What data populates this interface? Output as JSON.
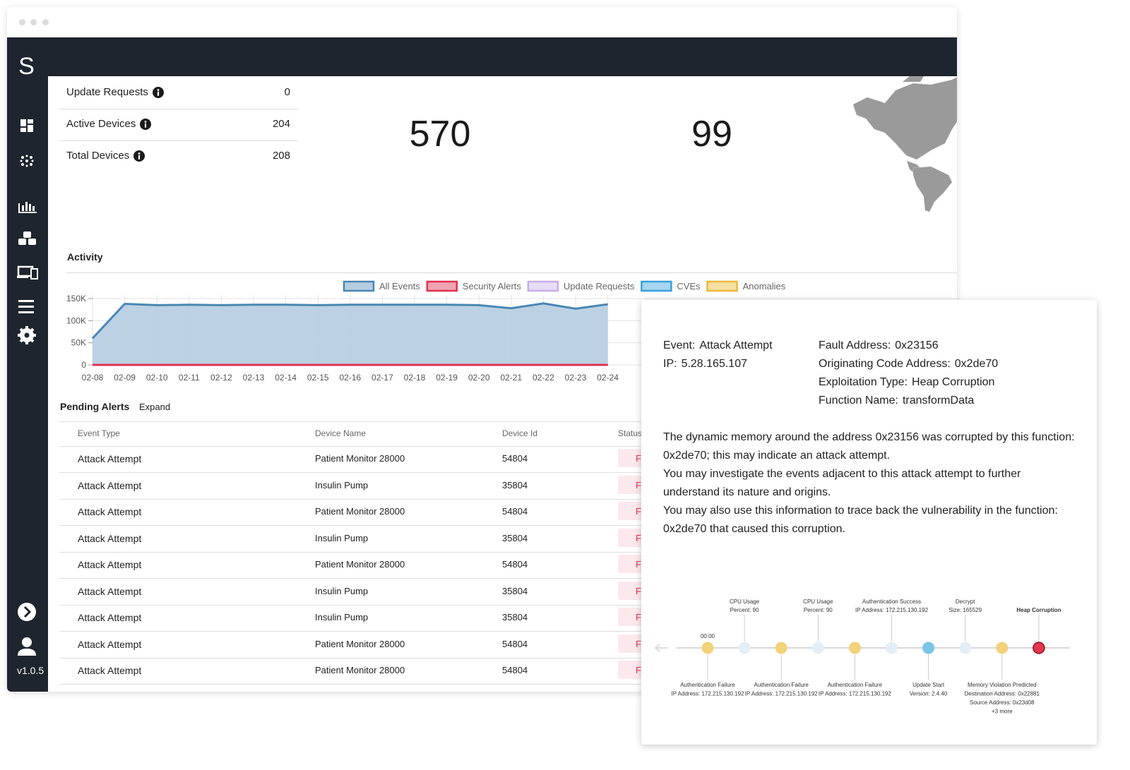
{
  "sidebar": {
    "logo": "S",
    "version": "v1.0.5"
  },
  "stats": [
    {
      "label": "Update Requests",
      "value": 0
    },
    {
      "label": "Active Devices",
      "value": 204
    },
    {
      "label": "Total Devices",
      "value": 208
    }
  ],
  "big_numbers": [
    570,
    99
  ],
  "activity": {
    "type": "area",
    "title": "Activity",
    "categories": [
      "02-08",
      "02-09",
      "02-10",
      "02-11",
      "02-12",
      "02-13",
      "02-14",
      "02-15",
      "02-16",
      "02-17",
      "02-18",
      "02-19",
      "02-20",
      "02-21",
      "02-22",
      "02-23",
      "02-24"
    ],
    "series": [
      {
        "name": "All Events",
        "color": "#4a86b4",
        "fill": "#b5cde1",
        "values": [
          60000,
          138000,
          135000,
          136000,
          135000,
          136000,
          136000,
          135000,
          136000,
          136000,
          136000,
          136000,
          135000,
          128000,
          139000,
          127000,
          137000
        ]
      },
      {
        "name": "Security Alerts",
        "color": "#e0314f",
        "fill": "#f2a3b1",
        "values": [
          0,
          0,
          0,
          0,
          0,
          0,
          0,
          0,
          0,
          0,
          0,
          0,
          0,
          0,
          0,
          0,
          0
        ]
      },
      {
        "name": "Update Requests",
        "color": "#c6aee8",
        "fill": "#e6dcf6",
        "values": [
          0,
          0,
          0,
          0,
          0,
          0,
          0,
          0,
          0,
          0,
          0,
          0,
          0,
          0,
          0,
          0,
          0
        ]
      },
      {
        "name": "CVEs",
        "color": "#3aa0dc",
        "fill": "#a8d5f0",
        "values": [
          0,
          0,
          0,
          0,
          0,
          0,
          0,
          0,
          0,
          0,
          0,
          0,
          0,
          0,
          0,
          0,
          0
        ]
      },
      {
        "name": "Anomalies",
        "color": "#efb73a",
        "fill": "#f7e0a2",
        "values": [
          0,
          0,
          0,
          0,
          0,
          0,
          0,
          0,
          0,
          0,
          0,
          0,
          0,
          0,
          0,
          0,
          0
        ]
      }
    ],
    "ylim": [
      0,
      150000
    ],
    "yticks": [
      0,
      {
        "value": 50000,
        "label": "50K"
      },
      {
        "value": 100000,
        "label": "100K"
      },
      {
        "value": 150000,
        "label": "150K"
      }
    ],
    "grid": true
  },
  "alerts": {
    "title": "Pending Alerts",
    "action": "Expand",
    "columns": [
      "Event Type",
      "Device Name",
      "Device Id",
      "Status"
    ],
    "rows": [
      [
        "Attack Attempt",
        "Patient Monitor 28000",
        54804,
        "F"
      ],
      [
        "Attack Attempt",
        "Insulin Pump",
        35804,
        "F"
      ],
      [
        "Attack Attempt",
        "Patient Monitor 28000",
        54804,
        "F"
      ],
      [
        "Attack Attempt",
        "Insulin Pump",
        35804,
        "F"
      ],
      [
        "Attack Attempt",
        "Patient Monitor 28000",
        54804,
        "F"
      ],
      [
        "Attack Attempt",
        "Insulin Pump",
        35804,
        "F"
      ],
      [
        "Attack Attempt",
        "Insulin Pump",
        35804,
        "F"
      ],
      [
        "Attack Attempt",
        "Patient Monitor 28000",
        54804,
        "F"
      ],
      [
        "Attack Attempt",
        "Patient Monitor 28000",
        54804,
        "F"
      ]
    ]
  },
  "detail": {
    "fields_left": [
      {
        "label": "Event:",
        "value": "Attack Attempt"
      },
      {
        "label": "IP:",
        "value": "5.28.165.107"
      }
    ],
    "fields_right": [
      {
        "label": "Fault Address:",
        "value": "0x23156"
      },
      {
        "label": "Originating Code Address:",
        "value": "0x2de70"
      },
      {
        "label": "Exploitation Type:",
        "value": "Heap Corruption"
      },
      {
        "label": "Function Name:",
        "value": "transformData"
      }
    ],
    "description": [
      "The dynamic memory around the address 0x23156 was corrupted by this function: 0x2de70; this may indicate an attack attempt.",
      "You may investigate the events adjacent to this attack attempt to further understand its nature and origins.",
      "You may also use this information to trace back the vulnerability in the function: 0x2de70 that caused this corruption."
    ],
    "timeline": [
      {
        "color": "#f2d27a",
        "top": [
          "00:00"
        ],
        "bottom": [
          "Authentication Failure",
          "IP Address: 172.215.130.192"
        ]
      },
      {
        "color": "#e4eef6",
        "top": [
          "CPU Usage",
          "Percent: 90"
        ]
      },
      {
        "color": "#f2d27a",
        "bottom": [
          "Authentication Failure",
          "IP Address: 172.215.130.192"
        ]
      },
      {
        "color": "#e4eef6",
        "top": [
          "CPU Usage",
          "Percent: 90"
        ]
      },
      {
        "color": "#f2d27a",
        "bottom": [
          "Authentication Failure",
          "IP Address: 172.215.130.192"
        ]
      },
      {
        "color": "#e4eef6",
        "top": [
          "Authentication Success",
          "IP Address: 172.215.130.192"
        ]
      },
      {
        "color": "#7cc3e6",
        "bottom": [
          "Update Start",
          "Version: 2.4.40"
        ]
      },
      {
        "color": "#e4eef6",
        "top": [
          "Decrypt",
          "Size: 165529"
        ]
      },
      {
        "color": "#f2d27a",
        "bottom": [
          "Memory Violation Predicted",
          "Destination Address: 0x22881",
          "Source Address: 0x23d08",
          "+3 more"
        ]
      },
      {
        "color": "#e5364f",
        "top": [
          "Heap Corruption"
        ],
        "emphasis": true
      }
    ]
  }
}
